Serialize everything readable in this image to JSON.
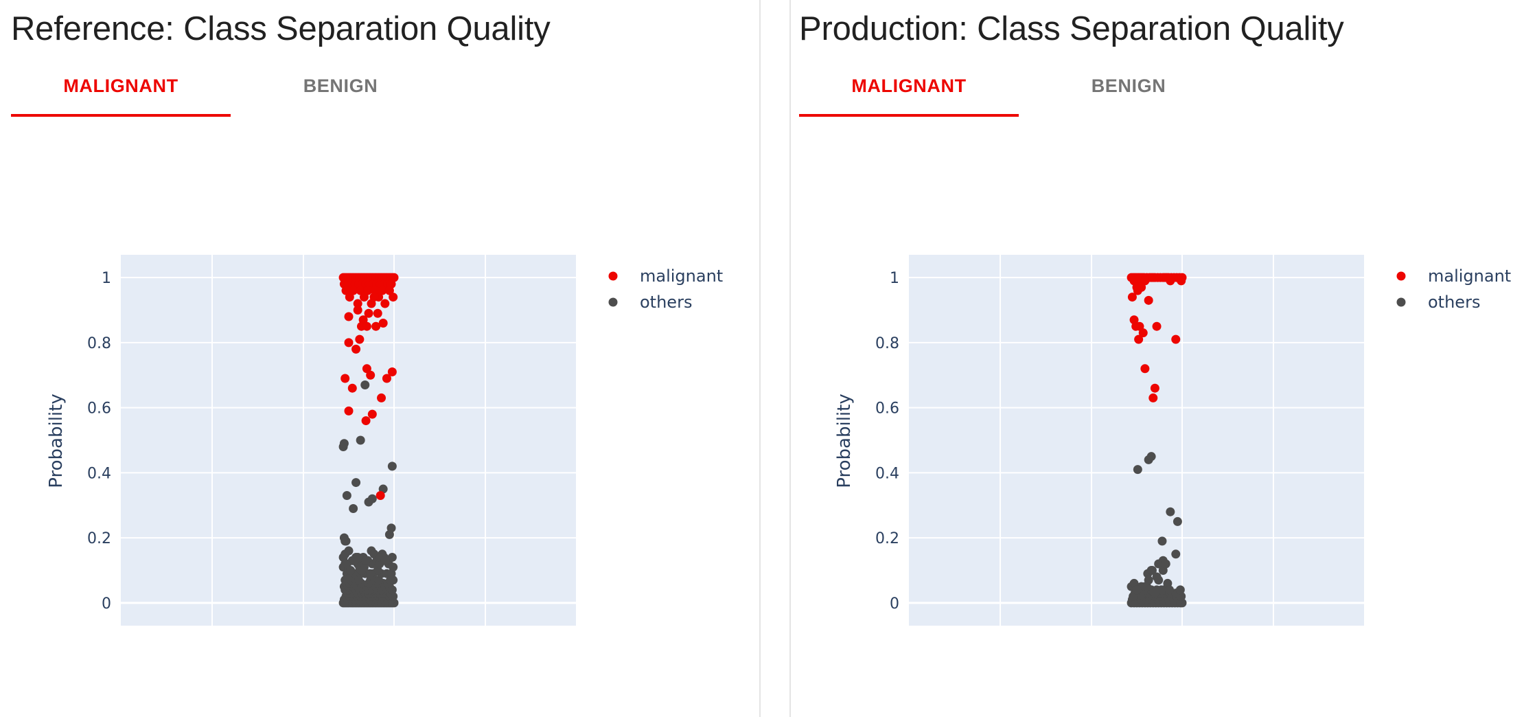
{
  "colors": {
    "accent": "#ed0500",
    "others": "#4d4d4d",
    "plot_bg": "#e5ecf6",
    "tab_inactive": "#757575"
  },
  "panels": [
    {
      "title": "Reference: Class Separation Quality",
      "tabs": [
        {
          "label": "MALIGNANT",
          "active": true
        },
        {
          "label": "BENIGN",
          "active": false
        }
      ]
    },
    {
      "title": "Production: Class Separation Quality",
      "tabs": [
        {
          "label": "MALIGNANT",
          "active": true
        },
        {
          "label": "BENIGN",
          "active": false
        }
      ]
    }
  ],
  "chart_data": [
    {
      "type": "scatter",
      "title": "",
      "xlabel": "",
      "ylabel": "Probability",
      "ylim": [
        -0.07,
        1.07
      ],
      "xlim": [
        0,
        1
      ],
      "yticks": [
        "0",
        "0.2",
        "0.4",
        "0.6",
        "0.8",
        "1"
      ],
      "grid": true,
      "legend_position": "top-right",
      "series": [
        {
          "name": "malignant",
          "color": "#ed0500",
          "x": [
            0.44,
            0.46,
            0.48,
            0.5,
            0.52,
            0.54,
            0.56,
            0.58,
            0.6,
            0.62,
            0.64,
            0.66,
            0.68,
            0.7,
            0.72,
            0.74,
            0.76,
            0.78,
            0.8,
            0.82,
            0.84,
            0.86,
            0.88,
            0.9,
            0.92,
            0.94,
            0.96,
            0.98,
            1.0,
            0.45,
            0.49,
            0.53,
            0.57,
            0.61,
            0.65,
            0.69,
            0.73,
            0.77,
            0.81,
            0.85,
            0.89,
            0.93,
            0.97,
            0.47,
            0.55,
            0.63,
            0.71,
            0.79,
            0.87,
            0.95,
            0.51,
            0.67,
            0.83,
            0.99,
            0.6,
            0.75,
            0.9,
            0.6,
            0.72,
            0.82,
            0.5,
            0.66,
            0.88,
            0.64,
            0.8,
            0.62,
            0.58,
            0.7,
            0.98,
            0.74,
            0.92,
            0.46,
            0.54,
            0.86,
            0.5,
            0.76,
            0.69,
            0.85,
            0.5,
            0.7,
            0.78
          ],
          "y": [
            1.0,
            1.0,
            1.0,
            1.0,
            1.0,
            1.0,
            1.0,
            1.0,
            1.0,
            1.0,
            1.0,
            1.0,
            1.0,
            1.0,
            1.0,
            1.0,
            1.0,
            1.0,
            1.0,
            1.0,
            1.0,
            1.0,
            1.0,
            1.0,
            1.0,
            1.0,
            1.0,
            1.0,
            1.0,
            0.98,
            0.98,
            0.98,
            0.98,
            0.98,
            0.98,
            0.98,
            0.98,
            0.98,
            0.98,
            0.98,
            0.98,
            0.98,
            0.98,
            0.96,
            0.96,
            0.96,
            0.96,
            0.96,
            0.96,
            0.96,
            0.94,
            0.94,
            0.94,
            0.94,
            0.92,
            0.92,
            0.92,
            0.9,
            0.89,
            0.89,
            0.88,
            0.87,
            0.86,
            0.85,
            0.85,
            0.81,
            0.78,
            0.72,
            0.71,
            0.7,
            0.69,
            0.69,
            0.66,
            0.63,
            0.59,
            0.58,
            0.56,
            0.33,
            0.8,
            0.85,
            0.94
          ]
        },
        {
          "name": "others",
          "color": "#4d4d4d",
          "x": [
            0.44,
            0.46,
            0.48,
            0.5,
            0.52,
            0.54,
            0.56,
            0.58,
            0.6,
            0.62,
            0.64,
            0.66,
            0.68,
            0.7,
            0.72,
            0.74,
            0.76,
            0.78,
            0.8,
            0.82,
            0.84,
            0.86,
            0.88,
            0.9,
            0.92,
            0.94,
            0.96,
            0.98,
            1.0,
            0.45,
            0.49,
            0.53,
            0.57,
            0.61,
            0.65,
            0.69,
            0.73,
            0.77,
            0.81,
            0.85,
            0.89,
            0.93,
            0.97,
            0.47,
            0.51,
            0.55,
            0.59,
            0.63,
            0.67,
            0.71,
            0.75,
            0.79,
            0.83,
            0.87,
            0.91,
            0.95,
            0.99,
            0.48,
            0.52,
            0.56,
            0.6,
            0.64,
            0.68,
            0.72,
            0.76,
            0.8,
            0.84,
            0.88,
            0.92,
            0.96,
            0.46,
            0.5,
            0.54,
            0.58,
            0.62,
            0.66,
            0.7,
            0.74,
            0.78,
            0.82,
            0.86,
            0.9,
            0.94,
            0.98,
            0.45,
            0.5,
            0.55,
            0.6,
            0.65,
            0.7,
            0.75,
            0.8,
            0.85,
            0.9,
            0.95,
            0.47,
            0.51,
            0.56,
            0.64,
            0.72,
            0.81,
            0.88,
            0.93,
            0.46,
            0.49,
            0.53,
            0.58,
            0.61,
            0.74,
            0.79,
            0.83,
            0.96,
            0.99,
            0.48,
            0.52,
            0.57,
            0.63,
            0.68,
            0.73,
            0.77,
            0.86,
            0.92,
            0.97,
            0.44,
            0.46,
            0.5,
            0.55,
            0.6,
            0.67,
            0.71,
            0.76,
            0.82,
            0.89,
            0.94,
            0.44,
            0.46,
            0.54,
            0.58,
            0.62,
            0.66,
            0.7,
            0.75,
            0.81,
            0.87,
            0.92,
            0.98,
            0.45,
            0.47,
            0.48,
            0.5,
            0.52,
            0.56,
            0.6,
            0.62,
            0.64,
            0.69,
            0.74,
            0.78,
            0.84,
            0.85,
            0.9,
            0.95,
            0.97,
            0.99,
            0.44,
            0.46,
            0.48,
            0.55,
            0.58,
            0.63,
            0.68,
            0.72,
            0.76,
            0.88,
            0.98,
            0.45
          ],
          "y": [
            0.0,
            0.0,
            0.0,
            0.0,
            0.0,
            0.0,
            0.0,
            0.0,
            0.0,
            0.0,
            0.0,
            0.0,
            0.0,
            0.0,
            0.0,
            0.0,
            0.0,
            0.0,
            0.0,
            0.0,
            0.0,
            0.0,
            0.0,
            0.0,
            0.0,
            0.0,
            0.0,
            0.0,
            0.0,
            0.01,
            0.01,
            0.01,
            0.01,
            0.01,
            0.01,
            0.01,
            0.01,
            0.01,
            0.01,
            0.01,
            0.01,
            0.01,
            0.01,
            0.02,
            0.02,
            0.02,
            0.02,
            0.02,
            0.02,
            0.02,
            0.02,
            0.02,
            0.02,
            0.02,
            0.02,
            0.02,
            0.02,
            0.03,
            0.03,
            0.03,
            0.03,
            0.03,
            0.03,
            0.03,
            0.03,
            0.03,
            0.03,
            0.03,
            0.03,
            0.03,
            0.04,
            0.04,
            0.04,
            0.04,
            0.04,
            0.04,
            0.04,
            0.04,
            0.04,
            0.04,
            0.04,
            0.04,
            0.04,
            0.04,
            0.05,
            0.05,
            0.05,
            0.05,
            0.05,
            0.05,
            0.05,
            0.05,
            0.05,
            0.05,
            0.05,
            0.06,
            0.06,
            0.06,
            0.06,
            0.06,
            0.06,
            0.06,
            0.06,
            0.07,
            0.07,
            0.07,
            0.07,
            0.07,
            0.07,
            0.07,
            0.07,
            0.07,
            0.07,
            0.09,
            0.09,
            0.09,
            0.09,
            0.09,
            0.09,
            0.09,
            0.09,
            0.09,
            0.09,
            0.11,
            0.12,
            0.1,
            0.13,
            0.12,
            0.11,
            0.13,
            0.12,
            0.1,
            0.14,
            0.12,
            0.14,
            0.15,
            0.13,
            0.14,
            0.12,
            0.14,
            0.13,
            0.16,
            0.13,
            0.15,
            0.13,
            0.14,
            0.2,
            0.19,
            0.12,
            0.16,
            0.1,
            0.13,
            0.14,
            0.11,
            0.1,
            0.13,
            0.09,
            0.15,
            0.12,
            0.14,
            0.13,
            0.21,
            0.23,
            0.11,
            0.48,
            0.19,
            0.33,
            0.29,
            0.37,
            0.5,
            0.67,
            0.31,
            0.32,
            0.35,
            0.42,
            0.49
          ]
        }
      ]
    },
    {
      "type": "scatter",
      "title": "",
      "xlabel": "",
      "ylabel": "Probability",
      "ylim": [
        -0.07,
        1.07
      ],
      "xlim": [
        0,
        1
      ],
      "yticks": [
        "0",
        "0.2",
        "0.4",
        "0.6",
        "0.8",
        "1"
      ],
      "grid": true,
      "legend_position": "top-right",
      "series": [
        {
          "name": "malignant",
          "color": "#ed0500",
          "x": [
            0.44,
            0.46,
            0.48,
            0.5,
            0.52,
            0.54,
            0.56,
            0.58,
            0.61,
            0.64,
            0.66,
            0.68,
            0.7,
            0.73,
            0.76,
            0.79,
            0.81,
            0.83,
            0.85,
            0.88,
            0.91,
            0.94,
            0.97,
            1.0,
            0.47,
            0.53,
            0.59,
            0.87,
            0.99,
            0.5,
            0.55,
            0.45,
            0.51,
            0.47,
            0.49,
            0.53,
            0.52,
            0.93,
            0.57,
            0.63,
            0.59,
            0.72,
            0.7,
            0.68
          ],
          "y": [
            1.0,
            1.0,
            1.0,
            1.0,
            1.0,
            1.0,
            1.0,
            1.0,
            1.0,
            1.0,
            1.0,
            1.0,
            1.0,
            1.0,
            1.0,
            1.0,
            1.0,
            1.0,
            1.0,
            1.0,
            1.0,
            1.0,
            1.0,
            1.0,
            0.99,
            0.99,
            0.99,
            0.99,
            0.99,
            0.97,
            0.97,
            0.94,
            0.96,
            0.87,
            0.85,
            0.85,
            0.81,
            0.81,
            0.83,
            0.93,
            0.72,
            0.85,
            0.66,
            0.63
          ]
        },
        {
          "name": "others",
          "color": "#4d4d4d",
          "x": [
            0.44,
            0.47,
            0.5,
            0.53,
            0.56,
            0.59,
            0.62,
            0.65,
            0.68,
            0.71,
            0.74,
            0.77,
            0.8,
            0.83,
            0.86,
            0.89,
            0.92,
            0.95,
            0.98,
            1.0,
            0.45,
            0.49,
            0.55,
            0.61,
            0.67,
            0.73,
            0.79,
            0.85,
            0.91,
            0.97,
            0.46,
            0.52,
            0.58,
            0.64,
            0.7,
            0.76,
            0.82,
            0.88,
            0.94,
            0.99,
            0.44,
            0.48,
            0.54,
            0.57,
            0.63,
            0.69,
            0.75,
            0.81,
            0.87,
            0.93,
            0.47,
            0.6,
            0.66,
            0.72,
            0.8,
            0.84,
            0.98,
            0.46,
            0.55,
            0.62,
            0.66,
            0.7,
            0.74,
            0.79,
            0.84,
            0.86,
            0.5,
            0.59,
            0.61,
            0.63,
            0.67,
            0.72,
            0.74,
            0.77,
            0.78,
            0.79,
            0.82,
            0.93,
            0.87,
            0.95,
            0.51,
            0.63,
            0.66,
            0.78
          ],
          "y": [
            0.0,
            0.0,
            0.0,
            0.0,
            0.0,
            0.0,
            0.0,
            0.0,
            0.0,
            0.0,
            0.0,
            0.0,
            0.0,
            0.0,
            0.0,
            0.0,
            0.0,
            0.0,
            0.0,
            0.0,
            0.01,
            0.01,
            0.01,
            0.01,
            0.01,
            0.01,
            0.01,
            0.01,
            0.01,
            0.01,
            0.02,
            0.02,
            0.02,
            0.02,
            0.02,
            0.02,
            0.02,
            0.02,
            0.02,
            0.02,
            0.05,
            0.03,
            0.03,
            0.03,
            0.03,
            0.03,
            0.03,
            0.03,
            0.03,
            0.03,
            0.06,
            0.04,
            0.04,
            0.04,
            0.04,
            0.04,
            0.04,
            0.02,
            0.05,
            0.09,
            0.1,
            0.03,
            0.07,
            0.13,
            0.06,
            0.04,
            0.04,
            0.05,
            0.05,
            0.07,
            0.1,
            0.08,
            0.12,
            0.04,
            0.12,
            0.1,
            0.12,
            0.15,
            0.28,
            0.25,
            0.41,
            0.44,
            0.45,
            0.19
          ]
        }
      ]
    }
  ]
}
